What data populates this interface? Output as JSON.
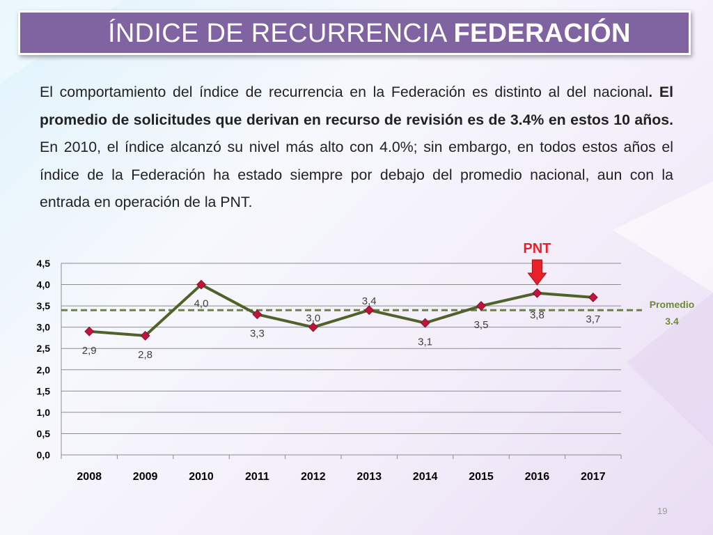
{
  "slide": {
    "title_regular": "ÍNDICE DE RECURRENCIA ",
    "title_bold": "FEDERACIÓN",
    "paragraph": {
      "part1": "El comportamiento del índice de recurrencia en la Federación es distinto al del nacional",
      "part2": ". El promedio de solicitudes que derivan en recurso de revisión es de 3.4% en estos 10 años.",
      "part3": " En 2010, el índice alcanzó su nivel más alto con 4.0%; sin embargo, en todos estos años el índice de la Federación ha estado siempre por debajo del promedio nacional, aun con la entrada en operación de la PNT."
    },
    "page_number": "19"
  },
  "chart_data": {
    "type": "line",
    "categories": [
      "2008",
      "2009",
      "2010",
      "2011",
      "2012",
      "2013",
      "2014",
      "2015",
      "2016",
      "2017"
    ],
    "series": [
      {
        "values": [
          2.9,
          2.8,
          4.0,
          3.3,
          3.0,
          3.4,
          3.1,
          3.5,
          3.8,
          3.7
        ],
        "labels": [
          "2,9",
          "2,8",
          "4,0",
          "3,3",
          "3,0",
          "3,4",
          "3,1",
          "3,5",
          "3,8",
          "3,7"
        ],
        "color": "#4f6228",
        "marker_color": "#c0143c"
      }
    ],
    "yticks": [
      "0,0",
      "0,5",
      "1,0",
      "1,5",
      "2,0",
      "2,5",
      "3,0",
      "3,5",
      "4,0",
      "4,5"
    ],
    "ylim": [
      0,
      4.5
    ],
    "grid": true,
    "average": {
      "value": 3.4,
      "label_line1": "Promedio",
      "label_line2": "3.4",
      "color": "#4f6228"
    },
    "annotation": {
      "text": "PNT",
      "category": "2016",
      "color": "#e8202a"
    }
  }
}
